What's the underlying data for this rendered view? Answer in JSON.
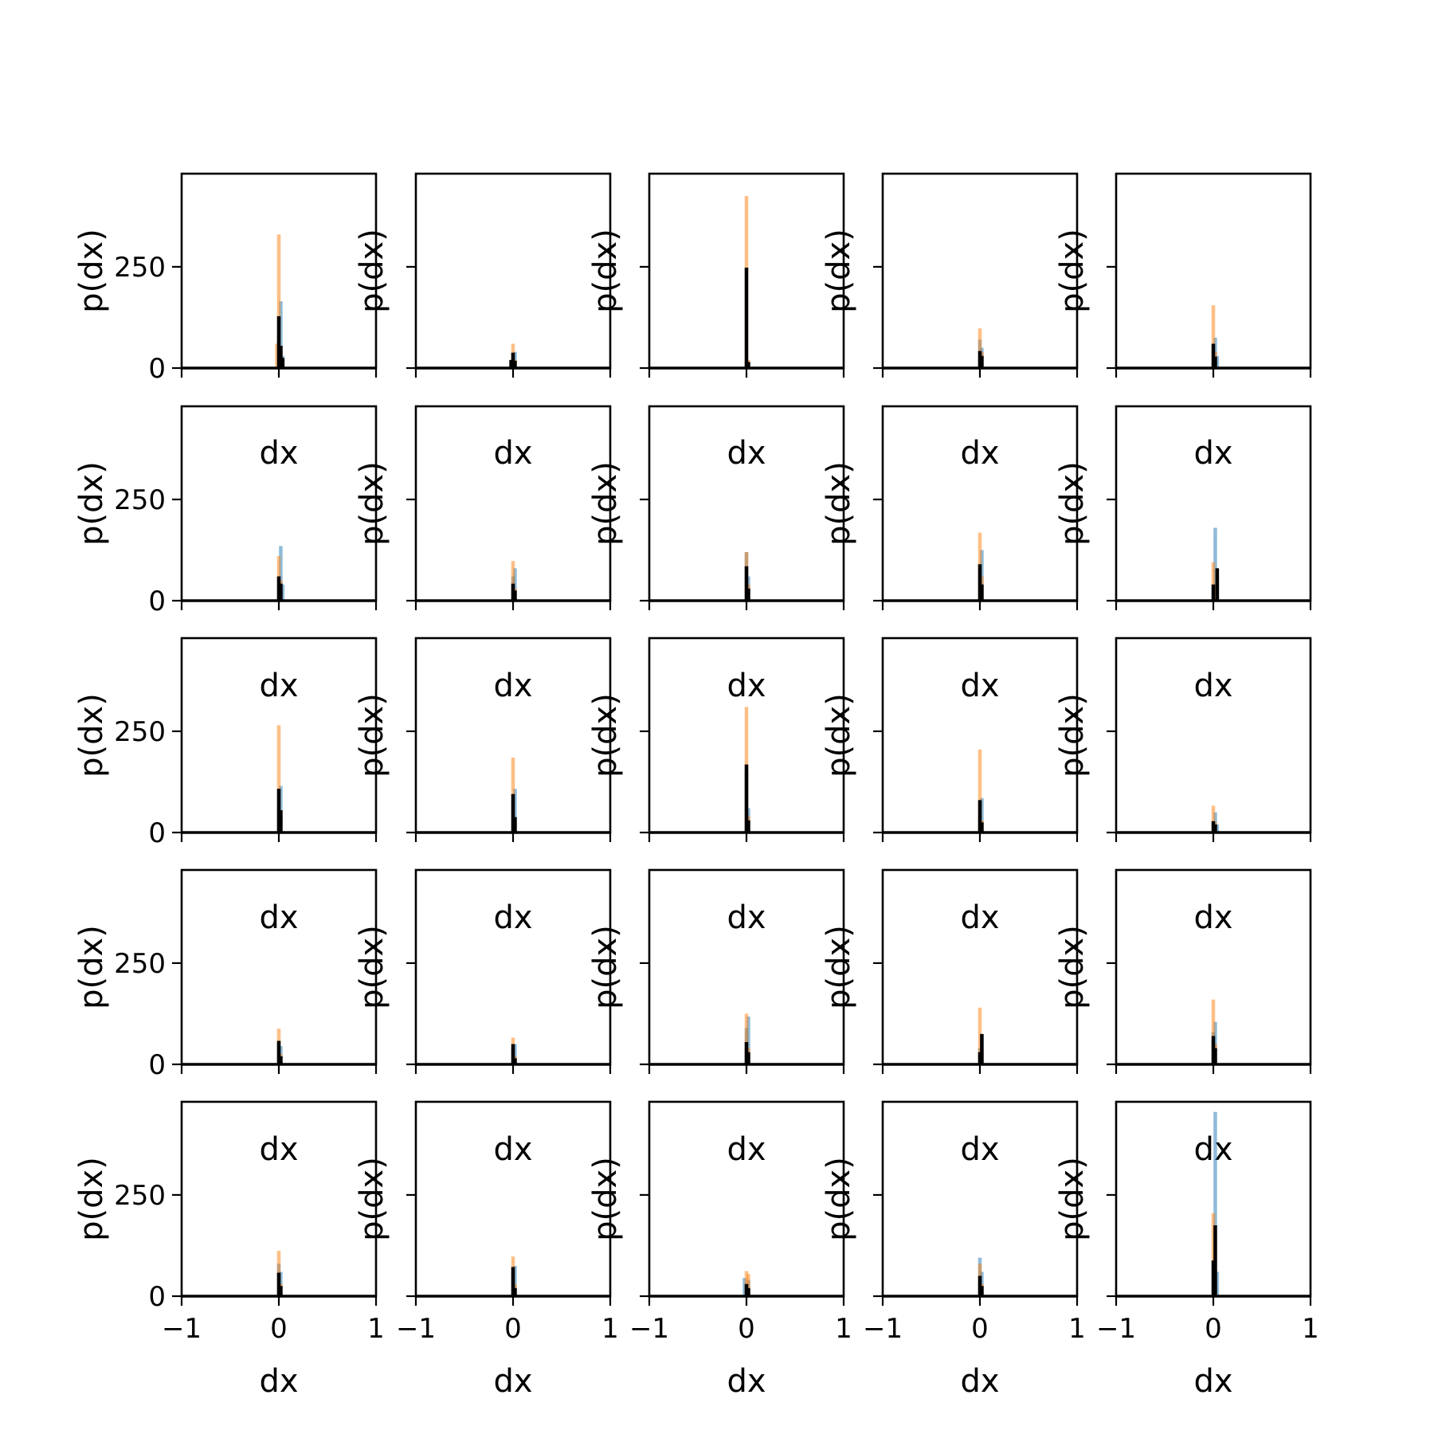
{
  "chart_data": {
    "type": "bar",
    "layout": {
      "rows": 5,
      "cols": 5
    },
    "xlabel": "dx",
    "ylabel": "p(dx)",
    "xlim": [
      -1,
      1
    ],
    "ylim": [
      0,
      480
    ],
    "xticks": [
      -1,
      0,
      1
    ],
    "xtick_labels": [
      "−1",
      "0",
      "1"
    ],
    "yticks": [
      0,
      250
    ],
    "ytick_labels": [
      "0",
      "250"
    ],
    "colors": {
      "series_a": "#1f77b4",
      "series_b": "#ff7f0e",
      "series_c": "#000000"
    },
    "panels": [
      {
        "a": [
          [
            0.0,
            80
          ],
          [
            0.02,
            165
          ],
          [
            0.04,
            30
          ]
        ],
        "b": [
          [
            -0.02,
            60
          ],
          [
            0.0,
            330
          ],
          [
            0.02,
            50
          ]
        ],
        "c": [
          [
            0.0,
            128
          ],
          [
            0.02,
            55
          ],
          [
            0.04,
            25
          ]
        ]
      },
      {
        "a": [
          [
            0.0,
            30
          ],
          [
            0.02,
            40
          ]
        ],
        "b": [
          [
            0.0,
            60
          ],
          [
            0.02,
            20
          ]
        ],
        "c": [
          [
            -0.02,
            20
          ],
          [
            0.0,
            38
          ],
          [
            0.02,
            18
          ]
        ]
      },
      {
        "a": [
          [
            0.0,
            20
          ]
        ],
        "b": [
          [
            0.0,
            425
          ],
          [
            0.02,
            20
          ]
        ],
        "c": [
          [
            0.0,
            248
          ],
          [
            0.02,
            15
          ]
        ]
      },
      {
        "a": [
          [
            0.0,
            70
          ],
          [
            0.02,
            50
          ]
        ],
        "b": [
          [
            0.0,
            98
          ],
          [
            0.02,
            40
          ]
        ],
        "c": [
          [
            0.0,
            42
          ],
          [
            0.02,
            30
          ]
        ]
      },
      {
        "a": [
          [
            0.02,
            75
          ],
          [
            0.04,
            30
          ]
        ],
        "b": [
          [
            0.0,
            155
          ],
          [
            0.02,
            40
          ]
        ],
        "c": [
          [
            0.0,
            60
          ],
          [
            0.02,
            28
          ]
        ]
      },
      {
        "a": [
          [
            0.02,
            135
          ],
          [
            0.04,
            40
          ]
        ],
        "b": [
          [
            0.0,
            110
          ],
          [
            0.02,
            50
          ]
        ],
        "c": [
          [
            0.0,
            60
          ],
          [
            0.02,
            42
          ]
        ]
      },
      {
        "a": [
          [
            0.0,
            60
          ],
          [
            0.02,
            80
          ]
        ],
        "b": [
          [
            0.0,
            98
          ],
          [
            0.02,
            30
          ]
        ],
        "c": [
          [
            0.0,
            42
          ],
          [
            0.02,
            25
          ]
        ]
      },
      {
        "a": [
          [
            0.0,
            120
          ],
          [
            0.02,
            60
          ]
        ],
        "b": [
          [
            0.0,
            120
          ],
          [
            0.02,
            40
          ]
        ],
        "c": [
          [
            0.0,
            85
          ],
          [
            0.02,
            30
          ]
        ]
      },
      {
        "a": [
          [
            0.0,
            80
          ],
          [
            0.02,
            125
          ]
        ],
        "b": [
          [
            0.0,
            168
          ],
          [
            0.02,
            60
          ]
        ],
        "c": [
          [
            0.0,
            90
          ],
          [
            0.02,
            40
          ]
        ]
      },
      {
        "a": [
          [
            0.02,
            180
          ],
          [
            0.04,
            50
          ]
        ],
        "b": [
          [
            0.0,
            95
          ],
          [
            0.02,
            40
          ]
        ],
        "c": [
          [
            0.0,
            40
          ],
          [
            0.04,
            80
          ]
        ]
      },
      {
        "a": [
          [
            0.0,
            60
          ],
          [
            0.02,
            115
          ]
        ],
        "b": [
          [
            0.0,
            265
          ],
          [
            0.02,
            40
          ]
        ],
        "c": [
          [
            0.0,
            108
          ],
          [
            0.02,
            55
          ]
        ]
      },
      {
        "a": [
          [
            0.0,
            80
          ],
          [
            0.02,
            108
          ]
        ],
        "b": [
          [
            0.0,
            185
          ],
          [
            0.02,
            30
          ]
        ],
        "c": [
          [
            0.0,
            95
          ],
          [
            0.02,
            38
          ]
        ]
      },
      {
        "a": [
          [
            0.0,
            150
          ],
          [
            0.02,
            60
          ]
        ],
        "b": [
          [
            0.0,
            310
          ],
          [
            0.02,
            40
          ]
        ],
        "c": [
          [
            0.0,
            168
          ],
          [
            0.02,
            30
          ]
        ]
      },
      {
        "a": [
          [
            0.0,
            40
          ],
          [
            0.02,
            85
          ]
        ],
        "b": [
          [
            0.0,
            205
          ],
          [
            0.02,
            30
          ]
        ],
        "c": [
          [
            0.0,
            80
          ],
          [
            0.02,
            25
          ]
        ]
      },
      {
        "a": [
          [
            0.02,
            50
          ],
          [
            0.04,
            20
          ]
        ],
        "b": [
          [
            0.0,
            66
          ],
          [
            0.02,
            25
          ]
        ],
        "c": [
          [
            0.0,
            28
          ],
          [
            0.02,
            20
          ]
        ]
      },
      {
        "a": [
          [
            0.0,
            50
          ],
          [
            0.02,
            45
          ]
        ],
        "b": [
          [
            0.0,
            88
          ],
          [
            0.02,
            25
          ]
        ],
        "c": [
          [
            0.0,
            58
          ],
          [
            0.02,
            20
          ]
        ]
      },
      {
        "a": [
          [
            0.0,
            40
          ],
          [
            0.02,
            50
          ]
        ],
        "b": [
          [
            0.0,
            66
          ],
          [
            0.02,
            20
          ]
        ],
        "c": [
          [
            0.0,
            50
          ],
          [
            0.02,
            15
          ]
        ]
      },
      {
        "a": [
          [
            0.0,
            90
          ],
          [
            0.02,
            118
          ]
        ],
        "b": [
          [
            0.0,
            125
          ],
          [
            0.02,
            40
          ]
        ],
        "c": [
          [
            0.0,
            55
          ],
          [
            0.02,
            30
          ]
        ]
      },
      {
        "a": [
          [
            0.0,
            40
          ],
          [
            0.02,
            70
          ]
        ],
        "b": [
          [
            0.0,
            140
          ],
          [
            0.02,
            30
          ]
        ],
        "c": [
          [
            0.0,
            30
          ],
          [
            0.02,
            75
          ]
        ]
      },
      {
        "a": [
          [
            0.0,
            80
          ],
          [
            0.02,
            105
          ]
        ],
        "b": [
          [
            0.0,
            160
          ],
          [
            0.02,
            50
          ]
        ],
        "c": [
          [
            0.0,
            70
          ],
          [
            0.02,
            40
          ]
        ]
      },
      {
        "a": [
          [
            0.0,
            80
          ],
          [
            0.02,
            60
          ]
        ],
        "b": [
          [
            0.0,
            112
          ],
          [
            0.02,
            30
          ]
        ],
        "c": [
          [
            0.0,
            58
          ],
          [
            0.02,
            25
          ]
        ]
      },
      {
        "a": [
          [
            0.0,
            60
          ],
          [
            0.02,
            75
          ]
        ],
        "b": [
          [
            0.0,
            98
          ],
          [
            0.02,
            30
          ]
        ],
        "c": [
          [
            0.0,
            72
          ],
          [
            0.02,
            20
          ]
        ]
      },
      {
        "a": [
          [
            -0.02,
            45
          ],
          [
            0.02,
            40
          ]
        ],
        "b": [
          [
            0.0,
            62
          ],
          [
            0.02,
            55
          ]
        ],
        "c": [
          [
            0.0,
            30
          ],
          [
            0.02,
            20
          ]
        ]
      },
      {
        "a": [
          [
            0.0,
            95
          ],
          [
            0.02,
            60
          ]
        ],
        "b": [
          [
            0.0,
            80
          ],
          [
            0.02,
            30
          ]
        ],
        "c": [
          [
            0.0,
            50
          ],
          [
            0.02,
            25
          ]
        ]
      },
      {
        "a": [
          [
            0.02,
            455
          ],
          [
            0.04,
            60
          ]
        ],
        "b": [
          [
            0.0,
            205
          ],
          [
            0.02,
            50
          ]
        ],
        "c": [
          [
            0.0,
            88
          ],
          [
            0.02,
            175
          ]
        ]
      }
    ]
  }
}
